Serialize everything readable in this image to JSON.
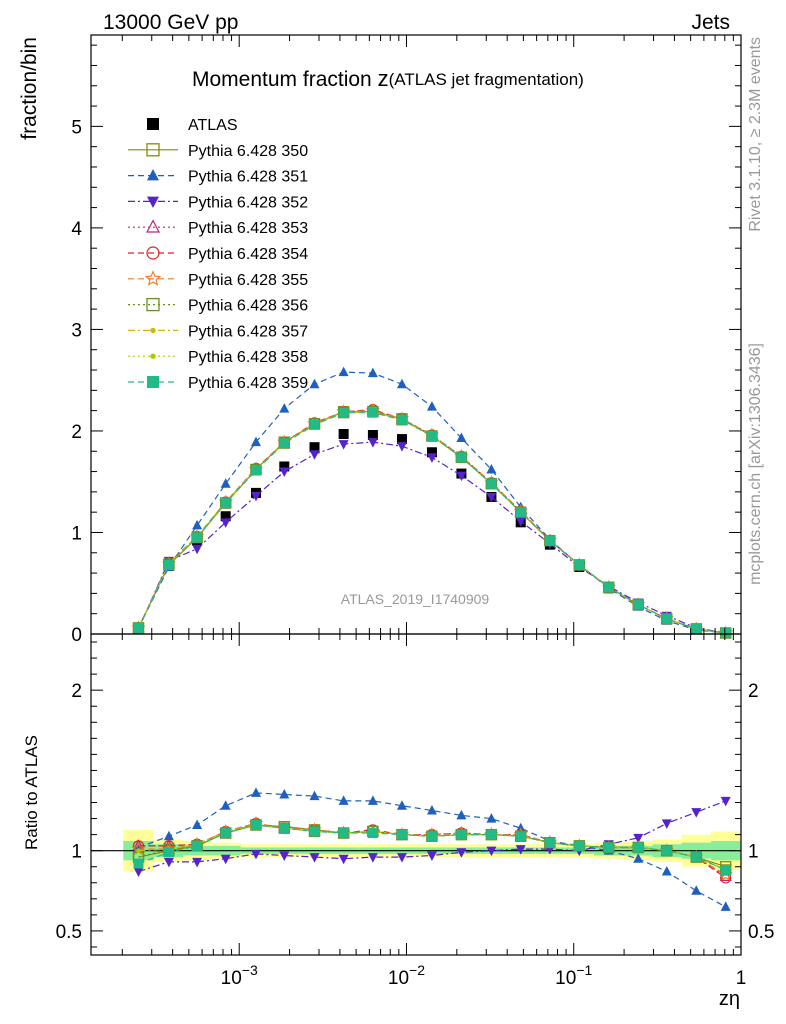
{
  "header": {
    "left": "13000 GeV pp",
    "right": "Jets"
  },
  "side_labels": {
    "rivet": "Rivet 3.1.10, ≥ 2.3M events",
    "mcplots": "mcplots.cern.ch [arXiv:1306.3436]"
  },
  "chart_data": [
    {
      "type": "scatter",
      "title_main": "Momentum fraction ",
      "title_z": "z",
      "title_sub": "(ATLAS jet fragmentation)",
      "ylabel": "fraction/bin",
      "watermark": "ATLAS_2019_I1740909",
      "xscale": "log",
      "xlim": [
        0.00013,
        1.0
      ],
      "ylim": [
        0,
        5.9
      ],
      "y_ticks": [
        0,
        1,
        2,
        3,
        4,
        5
      ],
      "y_tick_labels": [
        "0",
        "1",
        "2",
        "3",
        "4",
        "5"
      ],
      "x": [
        0.00025,
        0.00038,
        0.00056,
        0.00083,
        0.00126,
        0.00186,
        0.00282,
        0.00421,
        0.0063,
        0.0094,
        0.0142,
        0.0213,
        0.0322,
        0.0482,
        0.072,
        0.108,
        0.162,
        0.243,
        0.36,
        0.54,
        0.81
      ],
      "series": [
        {
          "name": "ATLAS",
          "color": "#000000",
          "marker": "square-filled",
          "dash": "none",
          "values": [
            0.06,
            0.68,
            0.92,
            1.16,
            1.39,
            1.65,
            1.84,
            1.97,
            1.96,
            1.92,
            1.79,
            1.58,
            1.35,
            1.1,
            0.88,
            0.66,
            0.45,
            0.28,
            0.15,
            0.05,
            0.01
          ]
        },
        {
          "name": "Pythia 6.428 350",
          "color": "#8b8b00",
          "marker": "square-open",
          "dash": "solid",
          "values": [
            0.06,
            0.68,
            0.95,
            1.29,
            1.62,
            1.89,
            2.07,
            2.19,
            2.19,
            2.12,
            1.95,
            1.74,
            1.48,
            1.2,
            0.92,
            0.68,
            0.46,
            0.29,
            0.15,
            0.05,
            0.01
          ]
        },
        {
          "name": "Pythia 6.428 351",
          "color": "#1f5fbf",
          "marker": "triangle-up-filled",
          "dash": "dashed",
          "values": [
            0.06,
            0.66,
            1.07,
            1.48,
            1.89,
            2.22,
            2.46,
            2.58,
            2.57,
            2.46,
            2.24,
            1.93,
            1.62,
            1.25,
            0.93,
            0.68,
            0.45,
            0.27,
            0.13,
            0.04,
            0.01
          ]
        },
        {
          "name": "Pythia 6.428 352",
          "color": "#5522cc",
          "marker": "triangle-down-filled",
          "dash": "dashdot",
          "values": [
            0.05,
            0.72,
            0.84,
            1.1,
            1.36,
            1.6,
            1.77,
            1.87,
            1.89,
            1.85,
            1.74,
            1.56,
            1.35,
            1.11,
            0.89,
            0.66,
            0.47,
            0.31,
            0.18,
            0.06,
            0.01
          ]
        },
        {
          "name": "Pythia 6.428 353",
          "color": "#c02080",
          "marker": "triangle-up-open",
          "dash": "dotted",
          "values": [
            0.06,
            0.7,
            0.96,
            1.3,
            1.63,
            1.88,
            2.07,
            2.19,
            2.2,
            2.12,
            1.96,
            1.75,
            1.49,
            1.21,
            0.92,
            0.68,
            0.46,
            0.29,
            0.15,
            0.05,
            0.01
          ]
        },
        {
          "name": "Pythia 6.428 354",
          "color": "#dd2222",
          "marker": "circle-open",
          "dash": "dashed",
          "values": [
            0.06,
            0.7,
            0.96,
            1.3,
            1.63,
            1.89,
            2.08,
            2.19,
            2.21,
            2.12,
            1.96,
            1.75,
            1.49,
            1.21,
            0.92,
            0.68,
            0.46,
            0.29,
            0.15,
            0.05,
            0.01
          ]
        },
        {
          "name": "Pythia 6.428 355",
          "color": "#ee7722",
          "marker": "star-open",
          "dash": "dashed",
          "values": [
            0.06,
            0.69,
            0.96,
            1.3,
            1.62,
            1.89,
            2.07,
            2.19,
            2.2,
            2.12,
            1.96,
            1.75,
            1.49,
            1.21,
            0.92,
            0.68,
            0.46,
            0.29,
            0.15,
            0.05,
            0.01
          ]
        },
        {
          "name": "Pythia 6.428 356",
          "color": "#6b8e23",
          "marker": "square-open",
          "dash": "dotted",
          "values": [
            0.06,
            0.69,
            0.95,
            1.29,
            1.62,
            1.88,
            2.07,
            2.18,
            2.19,
            2.11,
            1.95,
            1.74,
            1.48,
            1.2,
            0.92,
            0.68,
            0.46,
            0.29,
            0.15,
            0.05,
            0.01
          ]
        },
        {
          "name": "Pythia 6.428 357",
          "color": "#ccbb00",
          "marker": "dot-filled",
          "dash": "dashdot",
          "values": [
            0.06,
            0.69,
            0.96,
            1.3,
            1.62,
            1.88,
            2.07,
            2.18,
            2.19,
            2.11,
            1.95,
            1.74,
            1.48,
            1.2,
            0.92,
            0.68,
            0.46,
            0.29,
            0.15,
            0.05,
            0.01
          ]
        },
        {
          "name": "Pythia 6.428 358",
          "color": "#aacc00",
          "marker": "dot-filled",
          "dash": "dotted",
          "values": [
            0.06,
            0.69,
            0.96,
            1.3,
            1.62,
            1.88,
            2.07,
            2.18,
            2.19,
            2.11,
            1.95,
            1.74,
            1.48,
            1.2,
            0.92,
            0.68,
            0.46,
            0.29,
            0.15,
            0.05,
            0.01
          ]
        },
        {
          "name": "Pythia 6.428 359",
          "color": "#22bb88",
          "marker": "square-filled",
          "dash": "dashed",
          "values": [
            0.06,
            0.68,
            0.95,
            1.29,
            1.61,
            1.88,
            2.06,
            2.18,
            2.18,
            2.11,
            1.95,
            1.74,
            1.48,
            1.2,
            0.92,
            0.68,
            0.46,
            0.29,
            0.15,
            0.05,
            0.01
          ]
        }
      ]
    },
    {
      "type": "scatter",
      "ylabel": "Ratio to ATLAS",
      "xlabel": "zη",
      "xscale": "log",
      "xlim": [
        0.00013,
        1.0
      ],
      "ylim": [
        0.35,
        2.35
      ],
      "y_ticks": [
        0.5,
        1,
        2
      ],
      "y_tick_labels": [
        "0.5",
        "1",
        "2"
      ],
      "x_ticks": [
        0.001,
        0.01,
        0.1,
        1
      ],
      "x_tick_labels": [
        [
          "10",
          "−3"
        ],
        [
          "10",
          "−2"
        ],
        [
          "10",
          "−1"
        ],
        [
          "1",
          ""
        ]
      ],
      "x": [
        0.00025,
        0.00038,
        0.00056,
        0.00083,
        0.00126,
        0.00186,
        0.00282,
        0.00421,
        0.0063,
        0.0094,
        0.0142,
        0.0213,
        0.0322,
        0.0482,
        0.072,
        0.108,
        0.162,
        0.243,
        0.36,
        0.54,
        0.81
      ],
      "band_yellow": [
        [
          0.87,
          1.13
        ],
        [
          0.93,
          1.07
        ],
        [
          0.94,
          1.06
        ],
        [
          0.95,
          1.05
        ],
        [
          0.96,
          1.04
        ],
        [
          0.96,
          1.04
        ],
        [
          0.96,
          1.04
        ],
        [
          0.96,
          1.04
        ],
        [
          0.96,
          1.04
        ],
        [
          0.96,
          1.04
        ],
        [
          0.96,
          1.04
        ],
        [
          0.96,
          1.04
        ],
        [
          0.96,
          1.04
        ],
        [
          0.96,
          1.04
        ],
        [
          0.96,
          1.04
        ],
        [
          0.96,
          1.04
        ],
        [
          0.95,
          1.05
        ],
        [
          0.94,
          1.06
        ],
        [
          0.93,
          1.07
        ],
        [
          0.9,
          1.1
        ],
        [
          0.88,
          1.12
        ]
      ],
      "band_green": [
        [
          0.94,
          1.06
        ],
        [
          0.96,
          1.04
        ],
        [
          0.97,
          1.03
        ],
        [
          0.97,
          1.03
        ],
        [
          0.98,
          1.02
        ],
        [
          0.98,
          1.02
        ],
        [
          0.98,
          1.02
        ],
        [
          0.98,
          1.02
        ],
        [
          0.98,
          1.02
        ],
        [
          0.98,
          1.02
        ],
        [
          0.98,
          1.02
        ],
        [
          0.98,
          1.02
        ],
        [
          0.98,
          1.02
        ],
        [
          0.98,
          1.02
        ],
        [
          0.98,
          1.02
        ],
        [
          0.98,
          1.02
        ],
        [
          0.97,
          1.03
        ],
        [
          0.97,
          1.03
        ],
        [
          0.96,
          1.04
        ],
        [
          0.95,
          1.05
        ],
        [
          0.94,
          1.06
        ]
      ],
      "series": [
        {
          "name": "Pythia 6.428 350",
          "color": "#8b8b00",
          "marker": "square-open",
          "dash": "solid",
          "values": [
            0.96,
            1.0,
            1.03,
            1.11,
            1.16,
            1.15,
            1.13,
            1.11,
            1.12,
            1.1,
            1.09,
            1.1,
            1.1,
            1.09,
            1.05,
            1.03,
            1.02,
            1.02,
            1.0,
            0.96,
            0.9
          ]
        },
        {
          "name": "Pythia 6.428 351",
          "color": "#1f5fbf",
          "marker": "triangle-up-filled",
          "dash": "dashed",
          "values": [
            1.02,
            1.09,
            1.16,
            1.28,
            1.36,
            1.35,
            1.34,
            1.31,
            1.31,
            1.28,
            1.25,
            1.22,
            1.2,
            1.14,
            1.06,
            1.03,
            1.0,
            0.95,
            0.87,
            0.75,
            0.65
          ]
        },
        {
          "name": "Pythia 6.428 352",
          "color": "#5522cc",
          "marker": "triangle-down-filled",
          "dash": "dashdot",
          "values": [
            0.87,
            0.93,
            0.93,
            0.95,
            0.98,
            0.97,
            0.96,
            0.95,
            0.96,
            0.96,
            0.97,
            0.99,
            1.0,
            1.01,
            1.01,
            1.0,
            1.04,
            1.08,
            1.17,
            1.24,
            1.31
          ]
        },
        {
          "name": "Pythia 6.428 353",
          "color": "#c02080",
          "marker": "triangle-up-open",
          "dash": "dotted",
          "values": [
            1.03,
            1.03,
            1.04,
            1.12,
            1.17,
            1.14,
            1.12,
            1.11,
            1.12,
            1.1,
            1.1,
            1.11,
            1.1,
            1.1,
            1.05,
            1.03,
            1.02,
            1.02,
            1.0,
            0.96,
            0.84
          ]
        },
        {
          "name": "Pythia 6.428 354",
          "color": "#dd2222",
          "marker": "circle-open",
          "dash": "dashed",
          "values": [
            1.03,
            1.03,
            1.04,
            1.12,
            1.17,
            1.14,
            1.13,
            1.11,
            1.13,
            1.1,
            1.1,
            1.11,
            1.1,
            1.1,
            1.05,
            1.03,
            1.02,
            1.02,
            1.0,
            0.96,
            0.83
          ]
        },
        {
          "name": "Pythia 6.428 355",
          "color": "#ee7722",
          "marker": "star-open",
          "dash": "dashed",
          "values": [
            1.01,
            1.01,
            1.04,
            1.12,
            1.17,
            1.14,
            1.13,
            1.11,
            1.12,
            1.1,
            1.1,
            1.11,
            1.1,
            1.1,
            1.05,
            1.03,
            1.02,
            1.02,
            1.0,
            0.96,
            0.85
          ]
        },
        {
          "name": "Pythia 6.428 356",
          "color": "#6b8e23",
          "marker": "square-open",
          "dash": "dotted",
          "values": [
            0.96,
            1.01,
            1.03,
            1.11,
            1.16,
            1.14,
            1.12,
            1.11,
            1.12,
            1.1,
            1.09,
            1.1,
            1.1,
            1.09,
            1.05,
            1.03,
            1.02,
            1.02,
            1.0,
            0.96,
            0.88
          ]
        },
        {
          "name": "Pythia 6.428 357",
          "color": "#ccbb00",
          "marker": "dot-filled",
          "dash": "dashdot",
          "values": [
            1.0,
            1.01,
            1.04,
            1.12,
            1.16,
            1.14,
            1.12,
            1.11,
            1.12,
            1.1,
            1.09,
            1.1,
            1.1,
            1.09,
            1.05,
            1.03,
            1.02,
            1.02,
            1.0,
            0.96,
            0.88
          ]
        },
        {
          "name": "Pythia 6.428 358",
          "color": "#aacc00",
          "marker": "dot-filled",
          "dash": "dotted",
          "values": [
            1.0,
            1.01,
            1.04,
            1.12,
            1.16,
            1.14,
            1.12,
            1.11,
            1.12,
            1.1,
            1.09,
            1.1,
            1.1,
            1.09,
            1.05,
            1.03,
            1.02,
            1.02,
            1.0,
            0.96,
            0.88
          ]
        },
        {
          "name": "Pythia 6.428 359",
          "color": "#22bb88",
          "marker": "square-filled",
          "dash": "dashed",
          "values": [
            0.92,
            0.99,
            1.03,
            1.11,
            1.16,
            1.14,
            1.12,
            1.11,
            1.11,
            1.1,
            1.09,
            1.1,
            1.1,
            1.09,
            1.05,
            1.03,
            1.02,
            1.02,
            1.0,
            0.96,
            0.88
          ]
        }
      ]
    }
  ]
}
